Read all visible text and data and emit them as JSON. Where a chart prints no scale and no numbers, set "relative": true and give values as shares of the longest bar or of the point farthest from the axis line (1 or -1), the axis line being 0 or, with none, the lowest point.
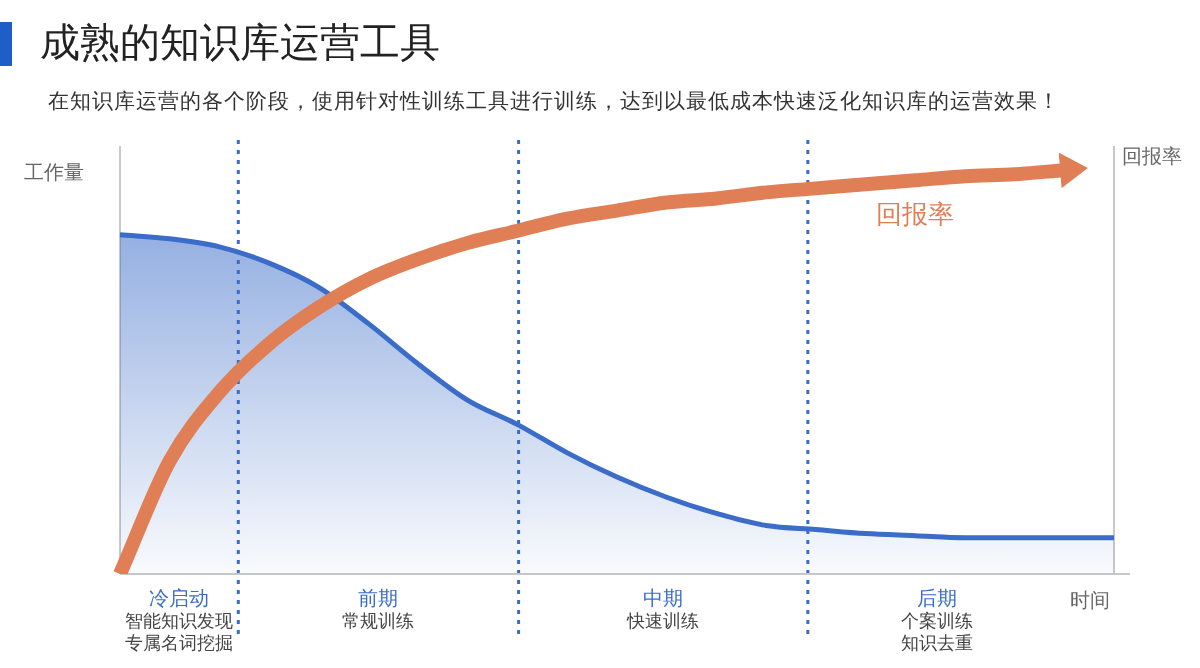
{
  "chart_data": {
    "type": "area",
    "title": "成熟的知识库运营工具",
    "subtitle": "在知识库运营的各个阶段，使用针对性训练工具进行训练，达到以最低成本快速泛化知识库的运营效果！",
    "ylabel": "工作量",
    "y2label": "回报率",
    "xlabel": "时间",
    "relative": true,
    "legend": false,
    "categories": [
      null,
      null,
      null,
      null,
      null,
      null,
      null,
      null,
      null,
      null,
      null,
      null,
      null,
      null,
      null,
      null,
      null,
      null,
      null,
      null,
      null
    ],
    "series": [
      {
        "color": "#3a6cc8",
        "values": [
          0.84,
          0.83,
          0.81,
          0.77,
          0.71,
          0.62,
          0.52,
          0.43,
          0.37,
          0.3,
          0.24,
          0.19,
          0.15,
          0.12,
          0.11,
          0.1,
          0.095,
          0.09,
          0.09,
          0.09,
          0.09
        ]
      },
      {
        "type": "line",
        "name": "回报率",
        "color": "#e07f55",
        "values": [
          0,
          0.28,
          0.45,
          0.57,
          0.66,
          0.73,
          0.78,
          0.82,
          0.85,
          0.88,
          0.9,
          0.92,
          0.93,
          0.945,
          0.955,
          0.965,
          0.975,
          0.985,
          0.99,
          1,
          null
        ]
      }
    ],
    "annotations": [
      "冷启动",
      "智能知识发现专属名词挖掘",
      "前期",
      "常规训练",
      "中期",
      "快速训练",
      "后期",
      "个案训练知识去重"
    ]
  }
}
